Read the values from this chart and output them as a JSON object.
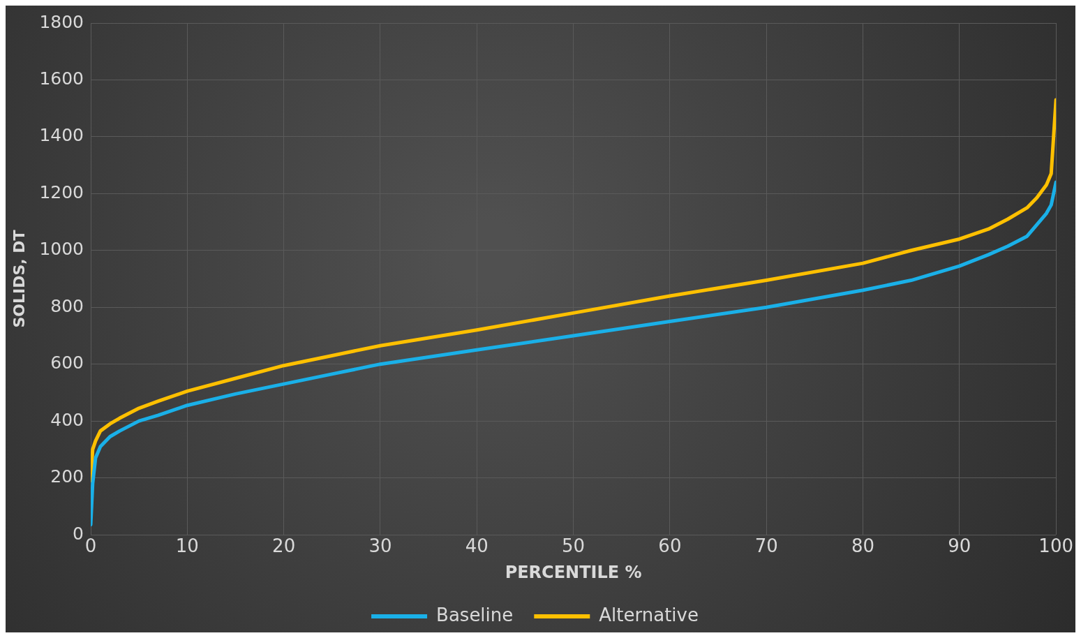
{
  "chart_data": {
    "type": "line",
    "xlabel": "PERCENTILE %",
    "ylabel": "SOLIDS, DT",
    "x": [
      0,
      0.2,
      0.5,
      1,
      2,
      3,
      5,
      7,
      10,
      15,
      20,
      25,
      30,
      40,
      50,
      60,
      70,
      80,
      85,
      90,
      93,
      95,
      97,
      98,
      99,
      99.5,
      100
    ],
    "series": [
      {
        "name": "Baseline",
        "color": "#1ab0e8",
        "values": [
          35,
          180,
          270,
          310,
          345,
          365,
          400,
          420,
          455,
          495,
          530,
          565,
          600,
          650,
          700,
          750,
          800,
          860,
          895,
          945,
          985,
          1015,
          1050,
          1090,
          1130,
          1160,
          1240
        ]
      },
      {
        "name": "Alternative",
        "color": "#ffc000",
        "values": [
          190,
          300,
          330,
          365,
          390,
          410,
          445,
          470,
          505,
          550,
          595,
          630,
          665,
          720,
          780,
          840,
          895,
          955,
          1000,
          1040,
          1075,
          1110,
          1150,
          1185,
          1230,
          1270,
          1530
        ]
      }
    ],
    "xlim": [
      0,
      100
    ],
    "xticks": [
      0,
      10,
      20,
      30,
      40,
      50,
      60,
      70,
      80,
      90,
      100
    ],
    "ylim": [
      0,
      1800
    ],
    "yticks": [
      0,
      200,
      400,
      600,
      800,
      1000,
      1200,
      1400,
      1600,
      1800
    ],
    "grid": true,
    "legend": "bottom",
    "marker": "none",
    "line_style": "solid"
  }
}
